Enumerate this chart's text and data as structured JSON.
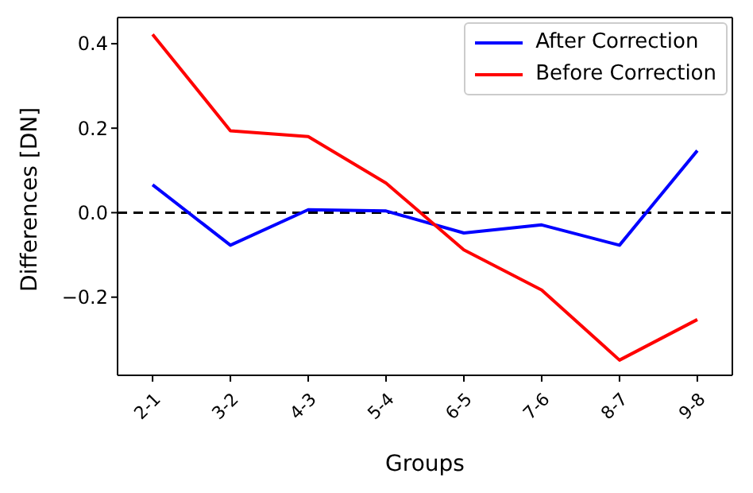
{
  "chart_data": {
    "type": "line",
    "xlabel": "Groups",
    "ylabel": "Differences [DN]",
    "categories": [
      "2-1",
      "3-2",
      "4-3",
      "5-4",
      "6-5",
      "7-6",
      "8-7",
      "9-8"
    ],
    "series": [
      {
        "name": "After Correction",
        "color": "#0000ff",
        "values": [
          0.066,
          -0.077,
          0.007,
          0.004,
          -0.048,
          -0.029,
          -0.077,
          0.147
        ]
      },
      {
        "name": "Before Correction",
        "color": "#ff0000",
        "values": [
          0.422,
          0.194,
          0.18,
          0.07,
          -0.088,
          -0.183,
          -0.349,
          -0.253
        ]
      }
    ],
    "ylim": [
      -0.385,
      0.462
    ],
    "yticks": [
      {
        "value": -0.2,
        "label": "−0.2"
      },
      {
        "value": 0,
        "label": "0.0"
      },
      {
        "value": 0.2,
        "label": "0.2"
      },
      {
        "value": 0.4,
        "label": "0.4"
      }
    ],
    "ref_lines": [
      {
        "axis": "y",
        "value": 0,
        "color": "#000000",
        "line_style": "dashed"
      }
    ],
    "legend": "top right",
    "marker": "none",
    "line_style": "solid",
    "grid": false
  }
}
